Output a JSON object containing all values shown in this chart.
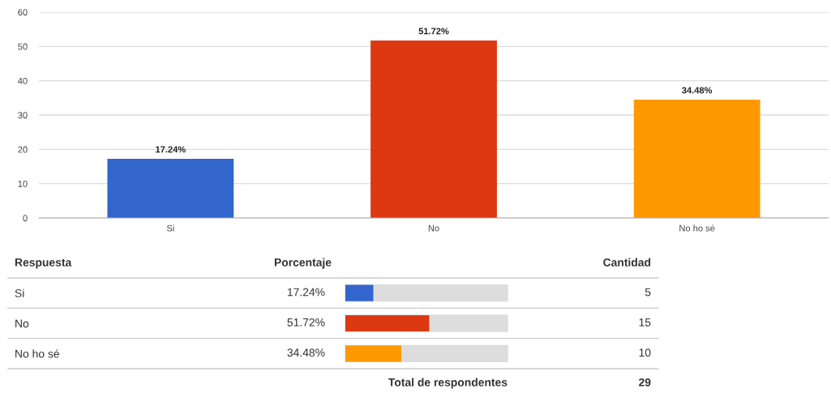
{
  "chart_data": [
    {
      "type": "bar",
      "categories": [
        "Si",
        "No",
        "No ho sé"
      ],
      "values": [
        17.24,
        51.72,
        34.48
      ],
      "colors": [
        "#3366cc",
        "#dc3912",
        "#ff9900"
      ],
      "value_labels": [
        "17.24%",
        "51.72%",
        "34.48%"
      ],
      "ylim": [
        0,
        60
      ],
      "yticks": [
        0,
        10,
        20,
        30,
        40,
        50,
        60
      ],
      "grid": "y"
    },
    {
      "type": "bar",
      "orientation": "horizontal",
      "categories": [
        "Si",
        "No",
        "No ho sé"
      ],
      "values": [
        17.24,
        51.72,
        34.48
      ],
      "colors": [
        "#3366cc",
        "#dc3912",
        "#ff9900"
      ],
      "value_labels": [
        "17.24%",
        "51.72%",
        "34.48%"
      ],
      "xlim": [
        0,
        100
      ],
      "tick_labels": "y",
      "annotations": [
        "Respuesta",
        "Porcentaje",
        "Cantidad",
        "5",
        "15",
        "10",
        "Total de respondentes",
        "29"
      ]
    }
  ]
}
